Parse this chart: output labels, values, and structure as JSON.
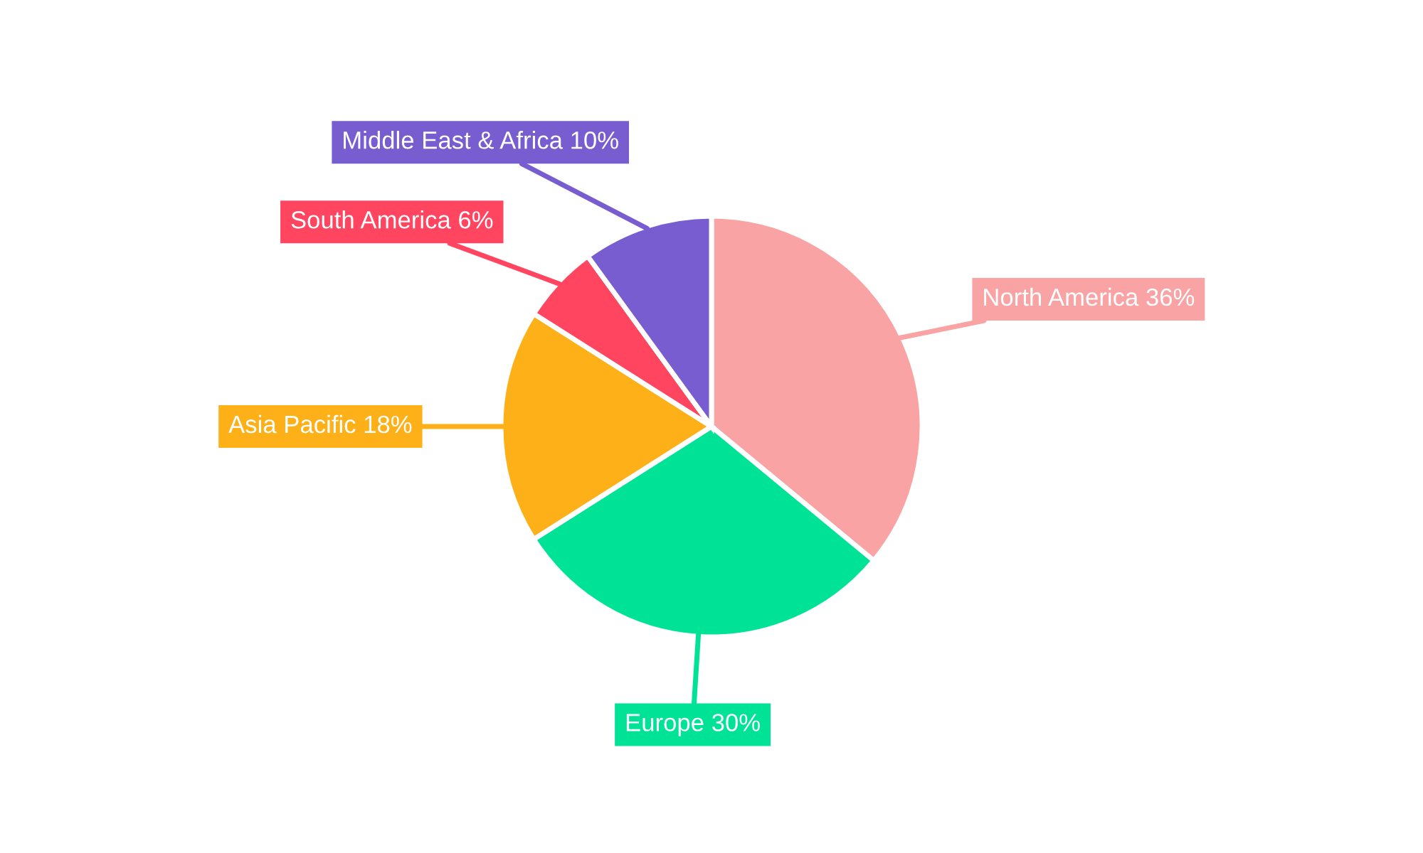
{
  "chart_data": {
    "type": "pie",
    "categories": [
      "North America",
      "Europe",
      "Asia Pacific",
      "South America",
      "Middle East & Africa"
    ],
    "values": [
      36,
      30,
      18,
      6,
      10
    ],
    "value_labels": [
      "36%",
      "30%",
      "18%",
      "6%",
      "10%"
    ],
    "colors": [
      "#f9a3a4",
      "#00e396",
      "#feb019",
      "#ff4560",
      "#775dd0"
    ]
  }
}
